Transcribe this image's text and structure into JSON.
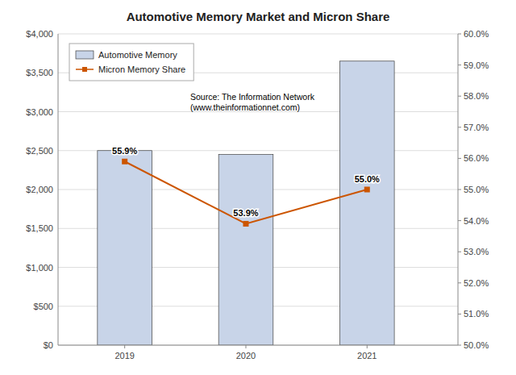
{
  "chart_data": {
    "type": "bar",
    "title": "Automotive Memory Market and Micron Share",
    "x": [
      2019,
      2020,
      2021
    ],
    "xlim": [
      2018.45,
      2021.75
    ],
    "xticks": [
      2019,
      2020,
      2021
    ],
    "series": [
      {
        "name": "Automotive Memory",
        "type": "bar",
        "color": "#c8d4e8",
        "values": [
          2500,
          2450,
          3650
        ]
      },
      {
        "name": "Micron Memory Share",
        "type": "line",
        "color": "#cc5500",
        "marker": "square",
        "axis": "y2",
        "values": [
          55.9,
          53.9,
          55.0
        ],
        "data_labels": true,
        "value_labels": [
          "55.9%",
          "53.9%",
          "55.0%"
        ]
      }
    ],
    "ylim": [
      0,
      4000
    ],
    "yticks": [
      {
        "value": 0,
        "label": "$0"
      },
      {
        "value": 500,
        "label": "$500"
      },
      {
        "value": 1000,
        "label": "$1,000"
      },
      {
        "value": 1500,
        "label": "$1,500"
      },
      {
        "value": 2000,
        "label": "$2,000"
      },
      {
        "value": 2500,
        "label": "$2,500"
      },
      {
        "value": 3000,
        "label": "$3,000"
      },
      {
        "value": 3500,
        "label": "$3,500"
      },
      {
        "value": 4000,
        "label": "$4,000"
      }
    ],
    "y2lim": [
      50.0,
      60.0
    ],
    "y2ticks": [
      {
        "value": 50.0,
        "label": "50.0%"
      },
      {
        "value": 51.0,
        "label": "51.0%"
      },
      {
        "value": 52.0,
        "label": "52.0%"
      },
      {
        "value": 53.0,
        "label": "53.0%"
      },
      {
        "value": 54.0,
        "label": "54.0%"
      },
      {
        "value": 55.0,
        "label": "55.0%"
      },
      {
        "value": 56.0,
        "label": "56.0%"
      },
      {
        "value": 57.0,
        "label": "57.0%"
      },
      {
        "value": 58.0,
        "label": "58.0%"
      },
      {
        "value": 59.0,
        "label": "59.0%"
      },
      {
        "value": 60.0,
        "label": "60.0%"
      }
    ],
    "grid": true,
    "legend": "upper left",
    "annotations": [
      "Source: The Information Network\n(www.theinformationnet.com)"
    ]
  }
}
